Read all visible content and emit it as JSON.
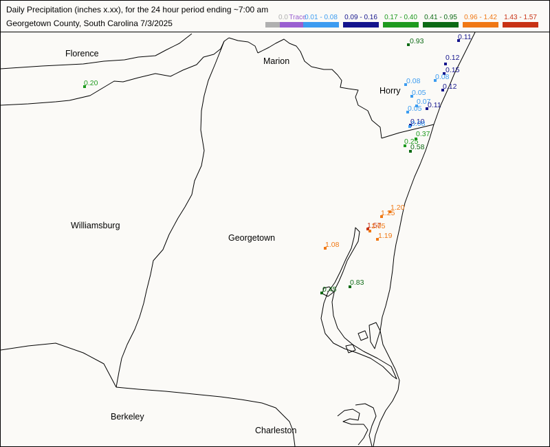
{
  "header": {
    "title_line1": "Daily Precipitation (inches  x.xx),  for the 24 hour period ending ~7:00 am",
    "title_line2": "Georgetown County, South Carolina  7/3/2025"
  },
  "legend": [
    {
      "label": "0.0",
      "color": "#b0b0b0"
    },
    {
      "label": "Trace",
      "color": "#9a5fd0"
    },
    {
      "label": "0.01 - 0.08",
      "color": "#3c9cf0"
    },
    {
      "label": "0.09 - 0.16",
      "color": "#14148c"
    },
    {
      "label": "0.17 - 0.40",
      "color": "#1e9a1e"
    },
    {
      "label": "0.41 - 0.95",
      "color": "#0c6a14"
    },
    {
      "label": "0.96 - 1.42",
      "color": "#f07814"
    },
    {
      "label": "1.43 - 1.57",
      "color": "#c83214"
    }
  ],
  "counties": [
    {
      "name": "Florence"
    },
    {
      "name": "Marion"
    },
    {
      "name": "Horry"
    },
    {
      "name": "Williamsburg"
    },
    {
      "name": "Georgetown"
    },
    {
      "name": "Berkeley"
    },
    {
      "name": "Charleston"
    }
  ],
  "stations": [
    {
      "value": "0.20",
      "range": 4
    },
    {
      "value": "0.93",
      "range": 5
    },
    {
      "value": "0.11",
      "range": 3
    },
    {
      "value": "0.12",
      "range": 3
    },
    {
      "value": "0.15",
      "range": 3
    },
    {
      "value": "0.08",
      "range": 2
    },
    {
      "value": "0.12",
      "range": 3
    },
    {
      "value": "0.08",
      "range": 2
    },
    {
      "value": "0.05",
      "range": 2
    },
    {
      "value": "0.07",
      "range": 2
    },
    {
      "value": "0.11",
      "range": 3
    },
    {
      "value": "0.05",
      "range": 2
    },
    {
      "value": "0.10",
      "range": 3
    },
    {
      "value": "0.08",
      "range": 2
    },
    {
      "value": "0.37",
      "range": 4
    },
    {
      "value": "0.25",
      "range": 4
    },
    {
      "value": "0.58",
      "range": 5
    },
    {
      "value": "1.20",
      "range": 6
    },
    {
      "value": "1.25",
      "range": 6
    },
    {
      "value": "1.57",
      "range": 7
    },
    {
      "value": "1.05",
      "range": 6
    },
    {
      "value": "1.19",
      "range": 6
    },
    {
      "value": "1.08",
      "range": 6
    },
    {
      "value": "0.83",
      "range": 5
    },
    {
      "value": "0.45",
      "range": 5
    }
  ]
}
